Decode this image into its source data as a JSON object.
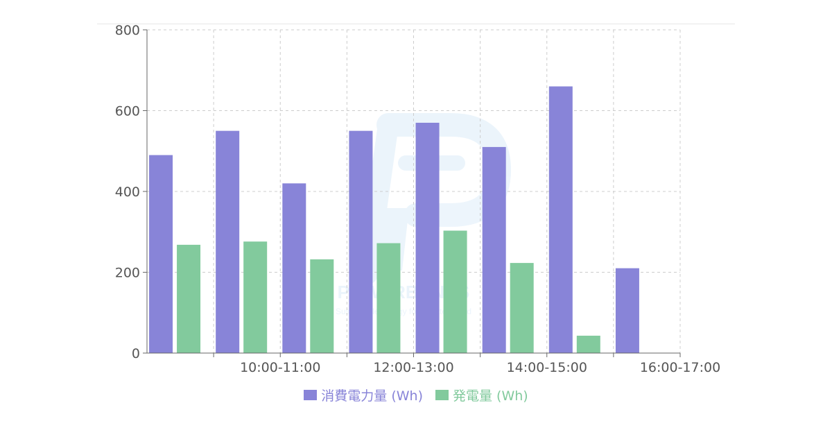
{
  "chart_data": {
    "type": "bar",
    "categories": [
      "",
      "10:00-11:00",
      "",
      "12:00-13:00",
      "",
      "14:00-15:00",
      "",
      "16:00-17:00"
    ],
    "series": [
      {
        "name": "消費電力量 (Wh)",
        "color": "#8884d8",
        "values": [
          490,
          550,
          420,
          550,
          570,
          510,
          660,
          210
        ]
      },
      {
        "name": "発電量 (Wh)",
        "color": "#82ca9d",
        "values": [
          268,
          276,
          232,
          272,
          303,
          223,
          43,
          null
        ]
      }
    ],
    "title": "",
    "xlabel": "",
    "ylabel": "",
    "ylim": [
      0,
      800
    ],
    "yticks": [
      0,
      200,
      400,
      600,
      800
    ],
    "grid": true,
    "legend_position": "bottom"
  },
  "watermark": {
    "brand": "POWERBANKS",
    "tagline": "Sustainable energy for a better world"
  }
}
